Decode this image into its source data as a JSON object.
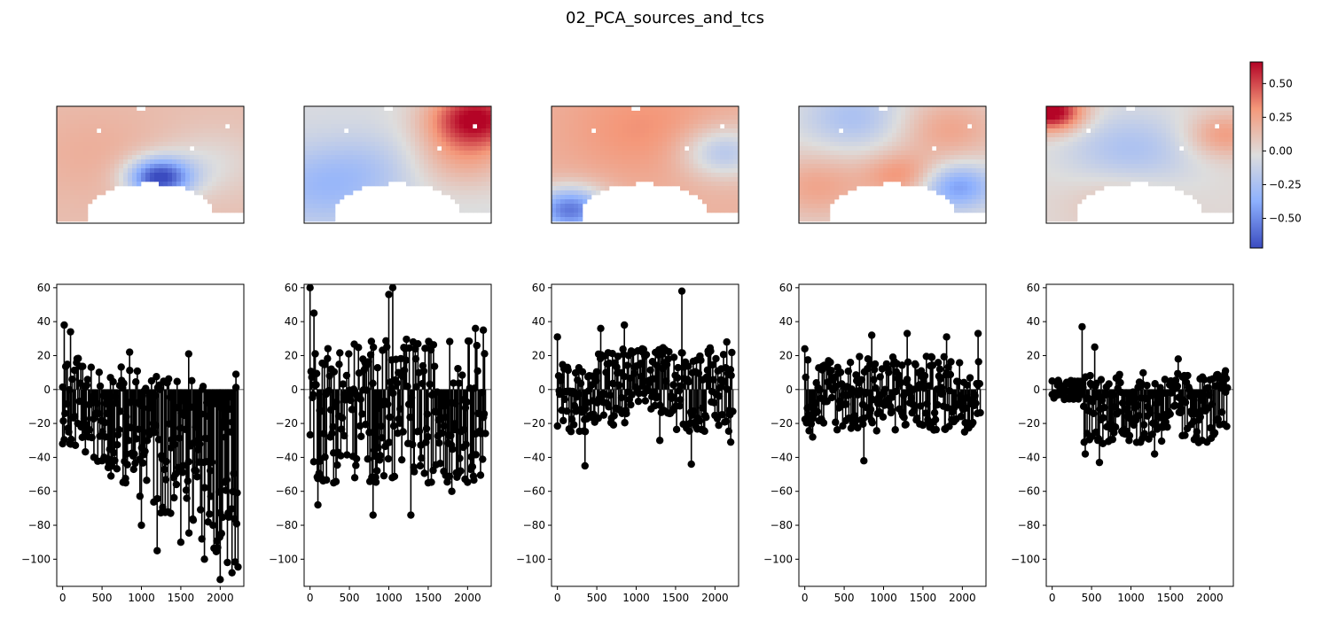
{
  "figure": {
    "title": "02_PCA_sources_and_tcs",
    "colors": {
      "stem": "#000000",
      "baseline": "#808080",
      "map_low": "#3b4cc0",
      "map_mid": "#dddddd",
      "map_high": "#b40426"
    }
  },
  "chart_data": [
    {
      "type": "heatmap",
      "name": "source-map-1",
      "description_pattern": "negative patch in lower centre, mildly positive elsewhere",
      "colorbar_ticks": [
        0.5,
        0.25,
        0.0,
        -0.25,
        -0.5
      ],
      "colorbar_tick_labels": [
        "0.50",
        "0.25",
        "0.00",
        "−0.25",
        "−0.50"
      ],
      "vlim": [
        -0.72,
        0.66
      ],
      "colormap": "coolwarm"
    },
    {
      "type": "heatmap",
      "name": "source-map-2",
      "colormap": "coolwarm",
      "vlim": [
        -0.72,
        0.66
      ]
    },
    {
      "type": "heatmap",
      "name": "source-map-3",
      "colormap": "coolwarm",
      "vlim": [
        -0.72,
        0.66
      ]
    },
    {
      "type": "heatmap",
      "name": "source-map-4",
      "colormap": "coolwarm",
      "vlim": [
        -0.72,
        0.66
      ]
    },
    {
      "type": "heatmap",
      "name": "source-map-5",
      "colormap": "coolwarm",
      "vlim": [
        -0.72,
        0.66
      ]
    },
    {
      "type": "stem",
      "name": "timecourse-1",
      "xlim": [
        -75,
        2300
      ],
      "ylim": [
        -116,
        62
      ],
      "xticks": [
        0,
        500,
        1000,
        1500,
        2000
      ],
      "yticks": [
        60,
        40,
        20,
        0,
        -20,
        -40,
        -60,
        -80,
        -100
      ],
      "xtick_labels": [
        "0",
        "500",
        "1000",
        "1500",
        "2000"
      ],
      "ytick_labels": [
        "60",
        "40",
        "20",
        "0",
        "−20",
        "−40",
        "−60",
        "−80",
        "−100"
      ],
      "baseline_y": 0,
      "values_approx": [
        [
          0,
          -32
        ],
        [
          20,
          38
        ],
        [
          100,
          34
        ],
        [
          300,
          -25
        ],
        [
          500,
          -42
        ],
        [
          800,
          -55
        ],
        [
          850,
          22
        ],
        [
          1000,
          -80
        ],
        [
          1200,
          -95
        ],
        [
          1500,
          -90
        ],
        [
          1600,
          21
        ],
        [
          1800,
          -100
        ],
        [
          2000,
          -112
        ],
        [
          2150,
          -108
        ],
        [
          2200,
          9
        ]
      ]
    },
    {
      "type": "stem",
      "name": "timecourse-2",
      "xlim": [
        -75,
        2300
      ],
      "ylim": [
        -116,
        62
      ],
      "xticks": [
        0,
        500,
        1000,
        1500,
        2000
      ],
      "yticks": [
        60,
        40,
        20,
        0,
        -20,
        -40,
        -60,
        -80,
        -100
      ],
      "xtick_labels": [
        "0",
        "500",
        "1000",
        "1500",
        "2000"
      ],
      "ytick_labels": [
        "60",
        "40",
        "20",
        "0",
        "−20",
        "−40",
        "−60",
        "−80",
        "−100"
      ],
      "baseline_y": 0,
      "values_approx": [
        [
          0,
          60
        ],
        [
          50,
          45
        ],
        [
          100,
          -68
        ],
        [
          300,
          -55
        ],
        [
          800,
          -74
        ],
        [
          1000,
          56
        ],
        [
          1050,
          60
        ],
        [
          1280,
          -74
        ],
        [
          1500,
          -55
        ],
        [
          1800,
          -60
        ],
        [
          2100,
          36
        ],
        [
          2200,
          35
        ]
      ]
    },
    {
      "type": "stem",
      "name": "timecourse-3",
      "xlim": [
        -75,
        2300
      ],
      "ylim": [
        -116,
        62
      ],
      "xticks": [
        0,
        500,
        1000,
        1500,
        2000
      ],
      "yticks": [
        60,
        40,
        20,
        0,
        -20,
        -40,
        -60,
        -80,
        -100
      ],
      "xtick_labels": [
        "0",
        "500",
        "1000",
        "1500",
        "2000"
      ],
      "ytick_labels": [
        "60",
        "40",
        "20",
        "0",
        "−20",
        "−40",
        "−60",
        "−80",
        "−100"
      ],
      "baseline_y": 0,
      "values_approx": [
        [
          0,
          31
        ],
        [
          350,
          -45
        ],
        [
          550,
          36
        ],
        [
          850,
          38
        ],
        [
          1300,
          -30
        ],
        [
          1580,
          58
        ],
        [
          1700,
          -44
        ],
        [
          2150,
          28
        ],
        [
          2200,
          -31
        ]
      ]
    },
    {
      "type": "stem",
      "name": "timecourse-4",
      "xlim": [
        -75,
        2300
      ],
      "ylim": [
        -116,
        62
      ],
      "xticks": [
        0,
        500,
        1000,
        1500,
        2000
      ],
      "yticks": [
        60,
        40,
        20,
        0,
        -20,
        -40,
        -60,
        -80,
        -100
      ],
      "xtick_labels": [
        "0",
        "500",
        "1000",
        "1500",
        "2000"
      ],
      "ytick_labels": [
        "60",
        "40",
        "20",
        "0",
        "−20",
        "−40",
        "−60",
        "−80",
        "−100"
      ],
      "baseline_y": 0,
      "values_approx": [
        [
          0,
          24
        ],
        [
          100,
          -28
        ],
        [
          750,
          -42
        ],
        [
          850,
          32
        ],
        [
          1300,
          33
        ],
        [
          1800,
          31
        ],
        [
          2200,
          33
        ]
      ]
    },
    {
      "type": "stem",
      "name": "timecourse-5",
      "xlim": [
        -75,
        2300
      ],
      "ylim": [
        -116,
        62
      ],
      "xticks": [
        0,
        500,
        1000,
        1500,
        2000
      ],
      "yticks": [
        60,
        40,
        20,
        0,
        -20,
        -40,
        -60,
        -80,
        -100
      ],
      "xtick_labels": [
        "0",
        "500",
        "1000",
        "1500",
        "2000"
      ],
      "ytick_labels": [
        "60",
        "40",
        "20",
        "0",
        "−20",
        "−40",
        "−60",
        "−80",
        "−100"
      ],
      "baseline_y": 0,
      "values_approx": [
        [
          0,
          5
        ],
        [
          380,
          37
        ],
        [
          420,
          -38
        ],
        [
          540,
          25
        ],
        [
          600,
          -43
        ],
        [
          1300,
          -38
        ],
        [
          1600,
          18
        ],
        [
          2200,
          11
        ]
      ]
    }
  ]
}
